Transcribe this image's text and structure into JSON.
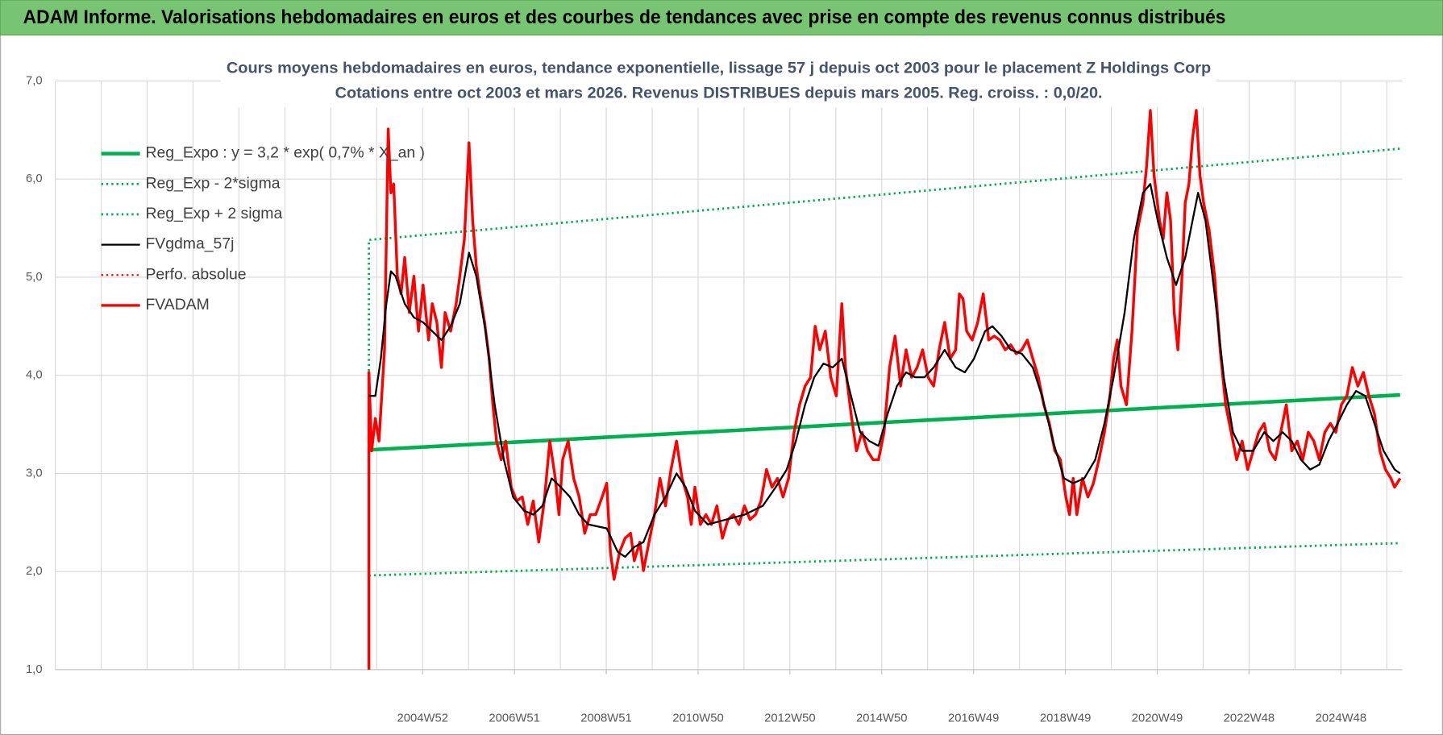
{
  "header": {
    "title": "ADAM Informe. Valorisations hebdomadaires en euros et des courbes de tendances avec prise en compte des revenus connus distribués"
  },
  "chart_data": {
    "type": "line",
    "title": "Cours moyens hebdomadaires en euros, tendance exponentielle, lissage 57 j depuis oct 2003 pour le placement Z Holdings Corp",
    "subtitle": "Cotations entre oct 2003 et mars 2026.  Revenus DISTRIBUES depuis mars 2005.  Reg. croiss. : 0,0/20.",
    "xlim": [
      1997,
      2026.34
    ],
    "ylim": [
      1,
      7
    ],
    "yticks": [
      {
        "value": 1,
        "label": "1,0"
      },
      {
        "value": 2,
        "label": "2,0"
      },
      {
        "value": 3,
        "label": "3,0"
      },
      {
        "value": 4,
        "label": "4,0"
      },
      {
        "value": 5,
        "label": "5,0"
      },
      {
        "value": 6,
        "label": "6,0"
      },
      {
        "value": 7,
        "label": "7,0"
      }
    ],
    "xticks": [
      {
        "value": 2005,
        "label": "2004W52"
      },
      {
        "value": 2007,
        "label": "2006W51"
      },
      {
        "value": 2009,
        "label": "2008W51"
      },
      {
        "value": 2011,
        "label": "2010W50"
      },
      {
        "value": 2013,
        "label": "2012W50"
      },
      {
        "value": 2015,
        "label": "2014W50"
      },
      {
        "value": 2017,
        "label": "2016W49"
      },
      {
        "value": 2019,
        "label": "2018W49"
      },
      {
        "value": 2021,
        "label": "2020W49"
      },
      {
        "value": 2023,
        "label": "2022W48"
      },
      {
        "value": 2025,
        "label": "2024W48"
      }
    ],
    "xgrid": [
      1997,
      1998,
      1999,
      2000,
      2001,
      2002,
      2003,
      2004,
      2005,
      2006,
      2007,
      2008,
      2009,
      2010,
      2011,
      2012,
      2013,
      2014,
      2015,
      2016,
      2017,
      2018,
      2019,
      2020,
      2021,
      2022,
      2023,
      2024,
      2025,
      2026
    ],
    "grid": true,
    "legend": "upper left",
    "series": [
      {
        "name": "Reg_Expo : y = 3,2 * exp( 0,7% * X_an )",
        "color": "#00b050",
        "style": "solid",
        "width": 4,
        "x": [
          2003.83,
          2026.29
        ],
        "values": [
          3.24,
          3.8
        ]
      },
      {
        "name": "Reg_Exp - 2*sigma",
        "color": "#00b050",
        "style": "dotted",
        "width": 2.5,
        "x": [
          2003.83,
          2026.29
        ],
        "values": [
          1.96,
          2.29
        ]
      },
      {
        "name": "Reg_Exp + 2 sigma",
        "color": "#00b050",
        "style": "dotted",
        "width": 2.5,
        "x": [
          2003.83,
          2003.83,
          2026.29
        ],
        "values": [
          3.89,
          5.38,
          6.31
        ]
      },
      {
        "name": "FVgdma_57j",
        "color": "#000000",
        "style": "solid",
        "width": 2,
        "x": [
          2003.83,
          2003.97,
          2004.09,
          2004.21,
          2004.31,
          2004.41,
          2004.61,
          2004.81,
          2005.01,
          2005.21,
          2005.41,
          2005.61,
          2005.81,
          2006.01,
          2006.17,
          2006.37,
          2006.57,
          2006.77,
          2006.97,
          2007.21,
          2007.41,
          2007.61,
          2007.81,
          2008.01,
          2008.21,
          2008.41,
          2008.61,
          2009.01,
          2009.25,
          2009.41,
          2009.61,
          2009.81,
          2010.05,
          2010.29,
          2010.53,
          2010.73,
          2010.93,
          2011.21,
          2011.61,
          2012.01,
          2012.41,
          2012.69,
          2012.93,
          2013.13,
          2013.33,
          2013.53,
          2013.73,
          2013.93,
          2014.13,
          2014.33,
          2014.53,
          2014.73,
          2014.93,
          2015.13,
          2015.33,
          2015.53,
          2015.73,
          2015.93,
          2016.13,
          2016.37,
          2016.61,
          2016.81,
          2017.01,
          2017.25,
          2017.41,
          2017.61,
          2017.81,
          2018.05,
          2018.29,
          2018.49,
          2018.73,
          2018.97,
          2019.17,
          2019.41,
          2019.65,
          2019.85,
          2020.05,
          2020.29,
          2020.49,
          2020.69,
          2020.85,
          2021.01,
          2021.21,
          2021.41,
          2021.61,
          2021.77,
          2021.89,
          2022.05,
          2022.25,
          2022.45,
          2022.65,
          2022.85,
          2023.09,
          2023.33,
          2023.53,
          2023.73,
          2023.93,
          2024.13,
          2024.33,
          2024.53,
          2024.73,
          2024.93,
          2025.13,
          2025.33,
          2025.53,
          2025.73,
          2025.93,
          2026.17,
          2026.29
        ],
        "values": [
          3.79,
          3.79,
          4.17,
          4.73,
          5.06,
          5.01,
          4.73,
          4.59,
          4.54,
          4.45,
          4.36,
          4.5,
          4.73,
          5.25,
          5.01,
          4.45,
          3.7,
          3.14,
          2.76,
          2.62,
          2.58,
          2.67,
          2.95,
          2.86,
          2.76,
          2.58,
          2.48,
          2.44,
          2.2,
          2.15,
          2.25,
          2.3,
          2.58,
          2.76,
          3.0,
          2.86,
          2.62,
          2.48,
          2.53,
          2.58,
          2.67,
          2.86,
          3.04,
          3.33,
          3.7,
          3.98,
          4.12,
          4.08,
          4.17,
          3.79,
          3.42,
          3.33,
          3.28,
          3.61,
          3.89,
          4.03,
          3.98,
          3.98,
          4.08,
          4.26,
          4.08,
          4.03,
          4.17,
          4.45,
          4.5,
          4.4,
          4.26,
          4.22,
          4.08,
          3.79,
          3.33,
          2.95,
          2.9,
          2.95,
          3.14,
          3.51,
          3.98,
          4.64,
          5.39,
          5.86,
          5.95,
          5.58,
          5.2,
          4.92,
          5.2,
          5.58,
          5.86,
          5.58,
          4.83,
          3.98,
          3.42,
          3.23,
          3.23,
          3.42,
          3.33,
          3.42,
          3.33,
          3.14,
          3.04,
          3.09,
          3.33,
          3.51,
          3.7,
          3.84,
          3.79,
          3.51,
          3.23,
          3.04,
          3.0
        ]
      },
      {
        "name": "Perfo. absolue",
        "color": "#ff0000",
        "style": "dotted",
        "width": 2,
        "x": [],
        "values": []
      },
      {
        "name": "FVADAM",
        "color": "#ff0000",
        "style": "solid",
        "width": 3,
        "x": [
          2003.83,
          2003.83,
          2003.89,
          2003.97,
          2004.05,
          2004.17,
          2004.25,
          2004.31,
          2004.37,
          2004.45,
          2004.53,
          2004.61,
          2004.71,
          2004.81,
          2004.91,
          2005.01,
          2005.13,
          2005.21,
          2005.31,
          2005.41,
          2005.49,
          2005.61,
          2005.73,
          2005.81,
          2005.91,
          2006.01,
          2006.09,
          2006.17,
          2006.25,
          2006.35,
          2006.45,
          2006.53,
          2006.61,
          2006.71,
          2006.81,
          2006.93,
          2007.05,
          2007.17,
          2007.29,
          2007.41,
          2007.53,
          2007.65,
          2007.77,
          2007.89,
          2007.97,
          2008.05,
          2008.17,
          2008.29,
          2008.41,
          2008.53,
          2008.65,
          2008.77,
          2008.91,
          2009.01,
          2009.09,
          2009.17,
          2009.29,
          2009.41,
          2009.53,
          2009.61,
          2009.73,
          2009.81,
          2009.93,
          2010.05,
          2010.17,
          2010.29,
          2010.41,
          2010.53,
          2010.65,
          2010.77,
          2010.85,
          2010.93,
          2011.05,
          2011.17,
          2011.29,
          2011.41,
          2011.53,
          2011.65,
          2011.77,
          2011.89,
          2012.01,
          2012.13,
          2012.25,
          2012.37,
          2012.49,
          2012.61,
          2012.73,
          2012.85,
          2012.97,
          2013.09,
          2013.21,
          2013.33,
          2013.45,
          2013.55,
          2013.65,
          2013.77,
          2013.89,
          2014.01,
          2014.13,
          2014.21,
          2014.33,
          2014.45,
          2014.57,
          2014.69,
          2014.81,
          2014.93,
          2015.05,
          2015.17,
          2015.29,
          2015.41,
          2015.53,
          2015.65,
          2015.77,
          2015.89,
          2016.01,
          2016.13,
          2016.25,
          2016.37,
          2016.49,
          2016.61,
          2016.69,
          2016.77,
          2016.85,
          2016.97,
          2017.09,
          2017.21,
          2017.33,
          2017.45,
          2017.57,
          2017.69,
          2017.81,
          2017.93,
          2018.05,
          2018.17,
          2018.29,
          2018.41,
          2018.53,
          2018.65,
          2018.77,
          2018.89,
          2019.01,
          2019.09,
          2019.17,
          2019.25,
          2019.37,
          2019.49,
          2019.61,
          2019.73,
          2019.85,
          2019.97,
          2020.05,
          2020.13,
          2020.21,
          2020.33,
          2020.45,
          2020.57,
          2020.69,
          2020.77,
          2020.85,
          2020.93,
          2021.05,
          2021.13,
          2021.21,
          2021.29,
          2021.37,
          2021.45,
          2021.53,
          2021.61,
          2021.69,
          2021.77,
          2021.85,
          2021.93,
          2022.01,
          2022.13,
          2022.25,
          2022.37,
          2022.49,
          2022.61,
          2022.73,
          2022.85,
          2022.97,
          2023.09,
          2023.21,
          2023.33,
          2023.45,
          2023.57,
          2023.69,
          2023.81,
          2023.93,
          2024.05,
          2024.17,
          2024.29,
          2024.41,
          2024.53,
          2024.65,
          2024.77,
          2024.89,
          2025.01,
          2025.13,
          2025.25,
          2025.37,
          2025.49,
          2025.61,
          2025.73,
          2025.85,
          2025.97,
          2026.09,
          2026.17,
          2026.29
        ],
        "values": [
          1.0,
          4.03,
          3.23,
          3.56,
          3.33,
          4.26,
          6.51,
          5.86,
          5.95,
          5.01,
          4.83,
          5.2,
          4.64,
          5.01,
          4.45,
          4.92,
          4.36,
          4.73,
          4.54,
          4.08,
          4.64,
          4.45,
          4.73,
          5.01,
          5.39,
          6.37,
          5.58,
          5.11,
          4.83,
          4.54,
          4.17,
          3.7,
          3.33,
          3.14,
          3.33,
          2.86,
          2.72,
          2.76,
          2.48,
          2.72,
          2.3,
          2.72,
          3.33,
          2.95,
          2.58,
          3.14,
          3.33,
          2.95,
          2.76,
          2.39,
          2.58,
          2.58,
          2.76,
          2.9,
          2.2,
          1.92,
          2.2,
          2.34,
          2.39,
          2.11,
          2.3,
          2.01,
          2.3,
          2.58,
          2.95,
          2.67,
          3.04,
          3.33,
          2.95,
          2.76,
          2.48,
          2.86,
          2.48,
          2.58,
          2.48,
          2.67,
          2.34,
          2.53,
          2.58,
          2.48,
          2.67,
          2.53,
          2.58,
          2.72,
          3.04,
          2.86,
          2.95,
          2.76,
          2.95,
          3.42,
          3.7,
          3.89,
          3.98,
          4.5,
          4.26,
          4.45,
          3.98,
          3.79,
          4.73,
          4.08,
          3.61,
          3.23,
          3.42,
          3.23,
          3.14,
          3.14,
          3.42,
          4.08,
          4.4,
          3.89,
          4.26,
          3.98,
          4.08,
          4.26,
          3.98,
          3.89,
          4.26,
          4.54,
          4.17,
          4.26,
          4.83,
          4.78,
          4.45,
          4.36,
          4.54,
          4.83,
          4.36,
          4.4,
          4.36,
          4.26,
          4.31,
          4.22,
          4.26,
          4.36,
          4.17,
          3.98,
          3.7,
          3.51,
          3.23,
          3.14,
          2.76,
          2.58,
          2.95,
          2.58,
          2.95,
          2.76,
          2.9,
          3.14,
          3.42,
          3.79,
          4.17,
          4.36,
          3.89,
          3.7,
          4.45,
          5.48,
          5.76,
          6.14,
          6.7,
          6.04,
          5.58,
          5.39,
          5.86,
          5.58,
          4.64,
          4.26,
          4.92,
          5.76,
          5.95,
          6.42,
          6.7,
          6.04,
          5.76,
          5.48,
          5.01,
          4.26,
          3.7,
          3.42,
          3.14,
          3.33,
          3.04,
          3.23,
          3.42,
          3.51,
          3.23,
          3.14,
          3.42,
          3.7,
          3.23,
          3.33,
          3.14,
          3.42,
          3.33,
          3.14,
          3.42,
          3.51,
          3.42,
          3.7,
          3.79,
          4.08,
          3.89,
          4.03,
          3.79,
          3.61,
          3.23,
          3.04,
          2.95,
          2.86,
          2.95
        ]
      }
    ]
  }
}
